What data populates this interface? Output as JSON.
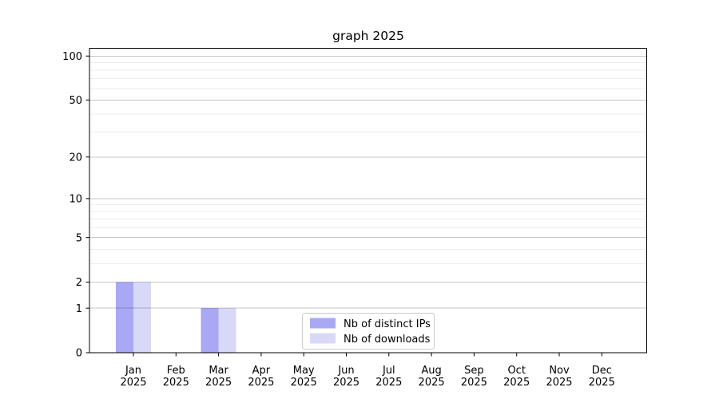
{
  "chart_data": {
    "type": "bar",
    "title": "graph 2025",
    "categories": [
      "Jan",
      "Feb",
      "Mar",
      "Apr",
      "May",
      "Jun",
      "Jul",
      "Aug",
      "Sep",
      "Oct",
      "Nov",
      "Dec"
    ],
    "category_year": "2025",
    "series": [
      {
        "name": "Nb of distinct IPs",
        "color": "#a8a8f5",
        "values": [
          2,
          0,
          1,
          0,
          0,
          0,
          0,
          0,
          0,
          0,
          0,
          0
        ]
      },
      {
        "name": "Nb of downloads",
        "color": "#d8d8f8",
        "values": [
          2,
          0,
          1,
          0,
          0,
          0,
          0,
          0,
          0,
          0,
          0,
          0
        ]
      }
    ],
    "y_axis": {
      "scale": "log1p",
      "ticks": [
        0,
        1,
        2,
        5,
        10,
        20,
        50,
        100
      ],
      "minor_gridlines": [
        3,
        4,
        6,
        7,
        8,
        9,
        30,
        40,
        60,
        70,
        80,
        90
      ],
      "max": 113
    },
    "x_axis": {
      "label_lines": 2
    },
    "grid": true,
    "legend": {
      "position": "bottom-center-inside"
    },
    "colors": {
      "background": "#ffffff",
      "axis": "#000000",
      "major_grid": "#c9c9c9",
      "minor_grid": "#ededed",
      "legend_border": "#cccccc"
    }
  }
}
